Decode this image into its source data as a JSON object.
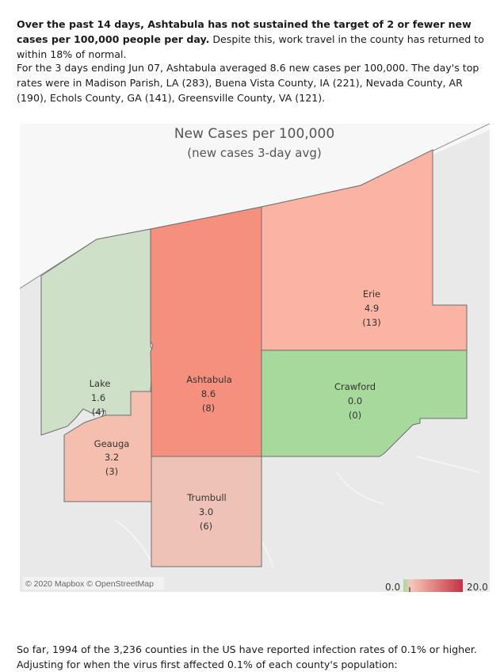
{
  "summary": {
    "bold_text": "Over the past 14 days, Ashtabula has not sustained the target of 2 or fewer new cases per 100,000 people per day.",
    "rest_text": " Despite this, work travel in the county has returned to within 18% of normal."
  },
  "detail_text": "For the 3 days ending Jun 07, Ashtabula averaged 8.6 new cases per 100,000. The day's top rates were in Madison Parish, LA (283), Buena Vista County, IA (221), Nevada County, AR (190), Echols County, GA (141), Greensville County, VA (121).",
  "footer_text": "So far, 1994 of the 3,236 counties in the US have reported infection rates of 0.1% or higher. Adjusting for when the virus first affected 0.1% of each county's population:",
  "map": {
    "title": "New Cases per 100,000",
    "subtitle": "(new cases 3-day avg)",
    "attribution": "© 2020 Mapbox © OpenStreetMap",
    "legend": {
      "min_label": "0.0",
      "max_label": "20.0",
      "min": 0,
      "max": 20
    },
    "colors": {
      "green_low": "#cfe0c8",
      "green_zero": "#a6d99b",
      "red_scale": [
        "#f7c7bc",
        "#e07f7a",
        "#c0334a"
      ]
    },
    "counties": [
      {
        "name": "Lake",
        "value": "1.6",
        "count": "(4)",
        "fill": "#cfe0c8"
      },
      {
        "name": "Geauga",
        "value": "3.2",
        "count": "(3)",
        "fill": "#f4bfae"
      },
      {
        "name": "Ashtabula",
        "value": "8.6",
        "count": "(8)",
        "fill": "#f5907f"
      },
      {
        "name": "Trumbull",
        "value": "3.0",
        "count": "(6)",
        "fill": "#efc2b7"
      },
      {
        "name": "Erie",
        "value": "4.9",
        "count": "(13)",
        "fill": "#fbb3a4"
      },
      {
        "name": "Crawford",
        "value": "0.0",
        "count": "(0)",
        "fill": "#a6d99b"
      }
    ]
  }
}
